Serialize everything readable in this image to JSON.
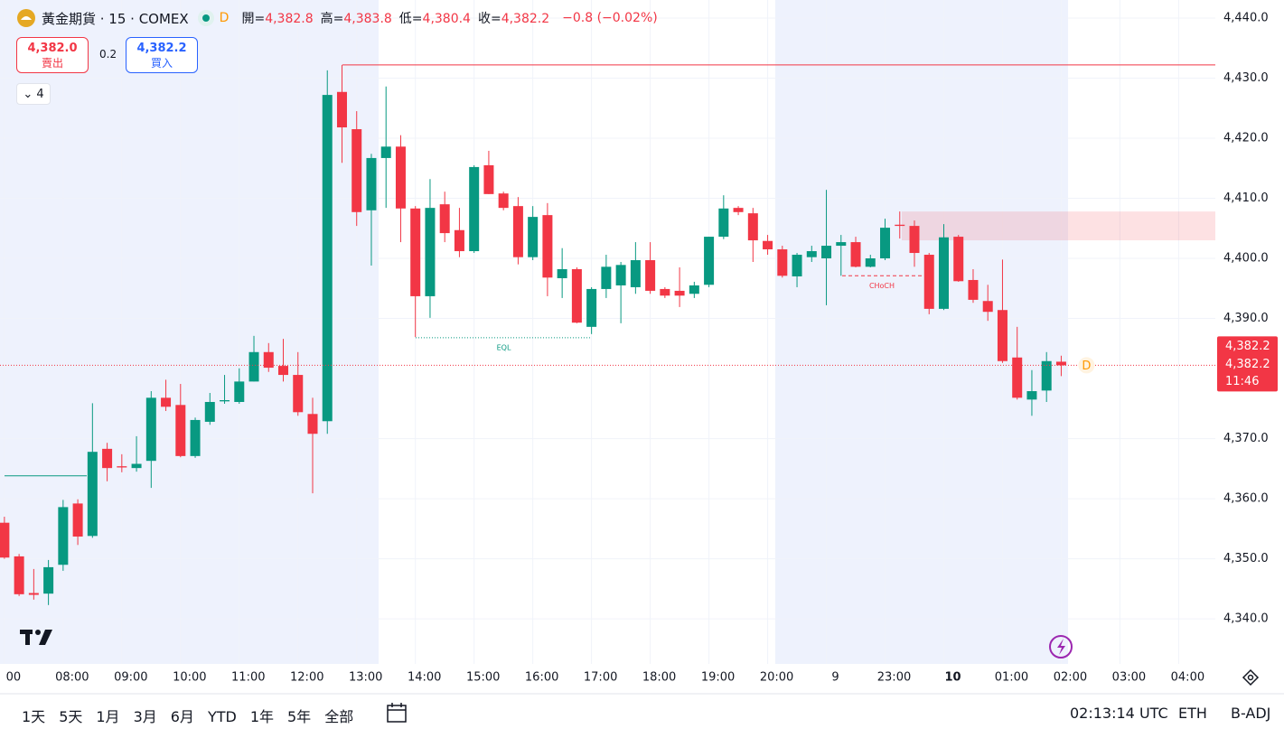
{
  "header": {
    "symbol": "黃金期貨 · 15 · COMEX",
    "badge": "D",
    "ohlc": [
      {
        "label": "開=",
        "value": "4,382.8"
      },
      {
        "label": "高=",
        "value": "4,383.8"
      },
      {
        "label": "低=",
        "value": "4,380.4"
      },
      {
        "label": "收=",
        "value": "4,382.2"
      }
    ],
    "change": "−0.8 (−0.02%)"
  },
  "trade": {
    "sell_price": "4,382.0",
    "sell_label": "賣出",
    "spread": "0.2",
    "buy_price": "4,382.2",
    "buy_label": "買入"
  },
  "indicators_toggle": "4",
  "price_label": {
    "price": "4,382.2",
    "price2": "4,382.2",
    "countdown": "11:46"
  },
  "chart_marker": "D",
  "toolbar": {
    "ranges": [
      "1天",
      "5天",
      "1月",
      "3月",
      "6月",
      "YTD",
      "1年",
      "5年",
      "全部"
    ],
    "clock": "02:13:14 UTC",
    "session": "ETH",
    "adjust": "B-ADJ"
  },
  "chart_data": {
    "type": "candlestick",
    "up_color": "#089981",
    "down_color": "#f23645",
    "open": [
      4356,
      4350.4,
      4344.3,
      4344.2,
      4349.0,
      4359.2,
      4353.8,
      4368.3,
      4365.4,
      4365.1,
      4366.3,
      4376.8,
      4375.6,
      4367.1,
      4372.8,
      4376.2,
      4376.1,
      4379.5,
      4384.4,
      4382.1,
      4380.6,
      4374.1,
      4372.9,
      4427.7,
      4421.5,
      4408.0,
      4416.7,
      4418.6,
      4408.3,
      4393.7,
      4409.0,
      4404.7,
      4401.2,
      4415.5,
      4410.8,
      4408.7,
      4400.2,
      4407.2,
      4396.7,
      4398.2,
      4388.6,
      4394.9,
      4395.5,
      4395.2,
      4399.7,
      4394.9,
      4394.6,
      4394.1,
      4395.6,
      4403.6,
      4408.4,
      4407.5,
      4402.9,
      4401.5,
      4397.0,
      4400.2,
      4400.0,
      4402.1,
      4402.7,
      4398.6,
      4400.0,
      4405.6,
      4405.4,
      4400.6,
      4391.6,
      4403.6,
      4396.4,
      4392.9,
      4391.4,
      4383.5,
      4376.5,
      4378.0,
      4382.8
    ],
    "high": [
      4357,
      4350.8,
      4348.3,
      4349.8,
      4359.8,
      4359.9,
      4375.9,
      4369.3,
      4367.4,
      4370.4,
      4377.9,
      4379.8,
      4379.1,
      4373.5,
      4377.6,
      4380.6,
      4381.7,
      4387.1,
      4385.9,
      4386.6,
      4384.4,
      4376.8,
      4431.3,
      4432.2,
      4424.5,
      4417.4,
      4428.6,
      4420.5,
      4408.7,
      4413.2,
      4411.1,
      4408.4,
      4415.5,
      4417.9,
      4411.1,
      4410.2,
      4408.7,
      4409.2,
      4401.7,
      4398.5,
      4395.2,
      4400.6,
      4399.4,
      4402.7,
      4402.7,
      4395.2,
      4398.5,
      4396.1,
      4403.6,
      4410.5,
      4408.7,
      4408.4,
      4403.9,
      4402.1,
      4400.9,
      4402.1,
      4411.4,
      4403.9,
      4403.6,
      4400.6,
      4406.6,
      4407.8,
      4406.3,
      4400.9,
      4405.7,
      4403.9,
      4398.2,
      4395.6,
      4399.8,
      4388.6,
      4381.4,
      4384.4,
      4383.8
    ],
    "low": [
      4350,
      4343.8,
      4343.2,
      4342.3,
      4348,
      4352.3,
      4353.5,
      4362.9,
      4364.4,
      4364.5,
      4361.8,
      4374.6,
      4366.9,
      4366.8,
      4372.3,
      4375.8,
      4375.8,
      4379.5,
      4381.1,
      4379.5,
      4373.8,
      4360.9,
      4370.8,
      4415.9,
      4405.4,
      4398.8,
      4408.4,
      4402.7,
      4386.9,
      4390.1,
      4402.7,
      4400.2,
      4400.9,
      4410.7,
      4408.0,
      4399.0,
      4399.7,
      4393.7,
      4393.4,
      4389.2,
      4387.4,
      4393.4,
      4389.2,
      4394.1,
      4394.1,
      4393.4,
      4391.9,
      4393.4,
      4395.2,
      4403.2,
      4407.2,
      4399.4,
      4400.6,
      4396.8,
      4395.2,
      4399.4,
      4392.2,
      4397.1,
      4398.5,
      4398.5,
      4399.7,
      4403.3,
      4398.6,
      4390.7,
      4391.4,
      4396.1,
      4392.6,
      4389.6,
      4382.6,
      4376.5,
      4373.8,
      4376.1,
      4380.4
    ],
    "close": [
      4350.2,
      4344.1,
      4344.0,
      4348.6,
      4358.6,
      4353.7,
      4367.8,
      4365.1,
      4365.2,
      4365.8,
      4376.8,
      4375.3,
      4367.1,
      4373.1,
      4376.1,
      4376.4,
      4379.5,
      4384.4,
      4381.8,
      4380.6,
      4374.4,
      4370.8,
      4427.2,
      4421.8,
      4407.7,
      4416.7,
      4418.6,
      4408.3,
      4393.7,
      4408.4,
      4404.2,
      4401.2,
      4415.2,
      4410.7,
      4408.4,
      4400.2,
      4406.9,
      4396.8,
      4398.2,
      4389.3,
      4394.9,
      4398.6,
      4398.9,
      4399.7,
      4394.6,
      4393.8,
      4393.8,
      4395.5,
      4403.6,
      4408.3,
      4407.7,
      4403.0,
      4401.5,
      4397.1,
      4400.6,
      4401.2,
      4402.1,
      4402.7,
      4398.6,
      4400.0,
      4405.1,
      4405.4,
      4400.9,
      4391.6,
      4403.5,
      4396.2,
      4393.1,
      4391.1,
      4382.9,
      4376.8,
      4377.9,
      4382.9,
      4382.2
    ],
    "xlim": [
      -0.3,
      82.5
    ],
    "xticks": [
      {
        "value": 0,
        "label": "00"
      },
      {
        "value": 4,
        "label": "08:00"
      },
      {
        "value": 8,
        "label": "09:00"
      },
      {
        "value": 12,
        "label": "10:00"
      },
      {
        "value": 16,
        "label": "11:00"
      },
      {
        "value": 20,
        "label": "12:00"
      },
      {
        "value": 24,
        "label": "13:00"
      },
      {
        "value": 28,
        "label": "14:00"
      },
      {
        "value": 32,
        "label": "15:00"
      },
      {
        "value": 36,
        "label": "16:00"
      },
      {
        "value": 40,
        "label": "17:00"
      },
      {
        "value": 44,
        "label": "18:00"
      },
      {
        "value": 48,
        "label": "19:00"
      },
      {
        "value": 52,
        "label": "20:00"
      },
      {
        "value": 56,
        "label": "9"
      },
      {
        "value": 60,
        "label": "23:00"
      },
      {
        "value": 64,
        "label": "10"
      },
      {
        "value": 68,
        "label": "01:00"
      },
      {
        "value": 72,
        "label": "02:00"
      },
      {
        "value": 76,
        "label": "03:00"
      },
      {
        "value": 80,
        "label": "04:00"
      }
    ],
    "ylim": [
      4332.5,
      4443
    ],
    "yticks": [
      {
        "value": 4340,
        "label": "4,340.0"
      },
      {
        "value": 4350,
        "label": "4,350.0"
      },
      {
        "value": 4360,
        "label": "4,360.0"
      },
      {
        "value": 4370,
        "label": "4,370.0"
      },
      {
        "value": 4390,
        "label": "4,390.0"
      },
      {
        "value": 4400,
        "label": "4,400.0"
      },
      {
        "value": 4410,
        "label": "4,410.0"
      },
      {
        "value": 4420,
        "label": "4,420.0"
      },
      {
        "value": 4430,
        "label": "4,430.0"
      },
      {
        "value": 4440,
        "label": "4,440.0"
      }
    ],
    "grid": true,
    "high_line": 4432.2,
    "low_line": 4363.8,
    "zone": [
      4403.0,
      4407.8
    ],
    "annotations": [
      {
        "label": "EQL",
        "value": 4386.8,
        "color": "#089981"
      },
      {
        "label": "CHoCH",
        "value": 4397.1,
        "color": "#f23645"
      }
    ]
  }
}
